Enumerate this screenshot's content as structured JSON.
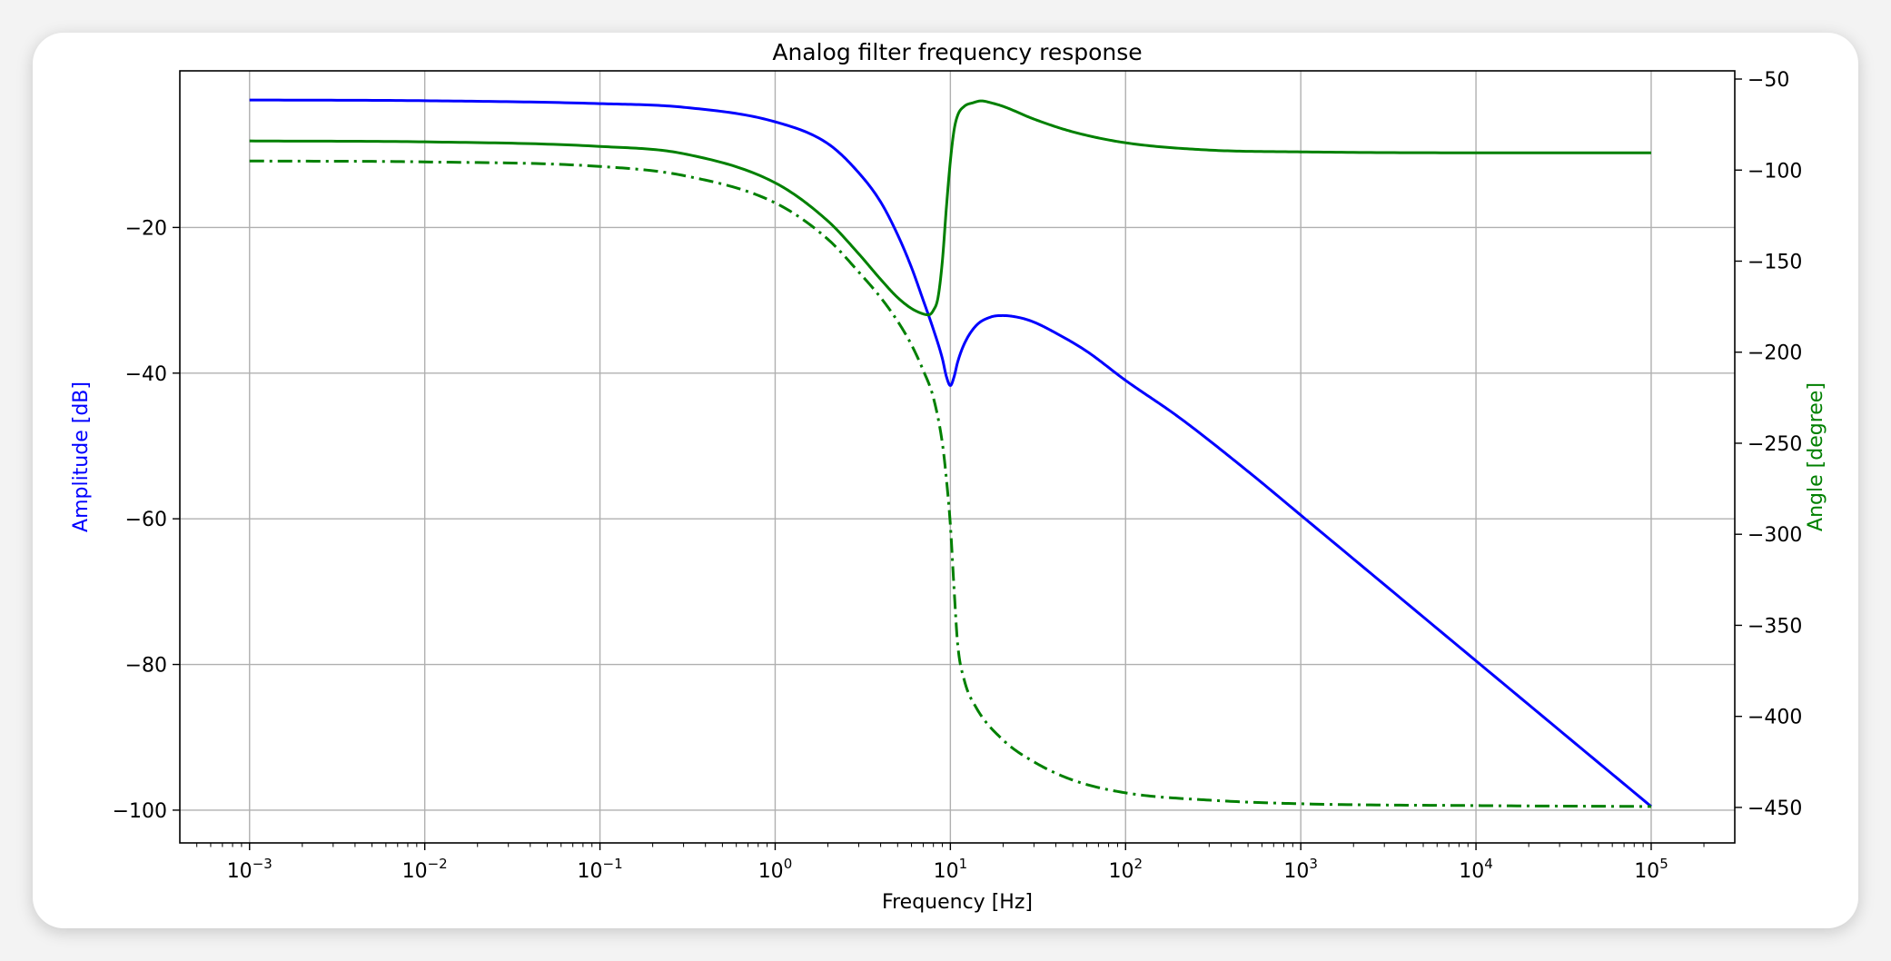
{
  "chart_data": {
    "type": "line",
    "title": "Analog filter frequency response",
    "xlabel": "Frequency [Hz]",
    "ylabel_left": "Amplitude [dB]",
    "ylabel_right": "Angle [degree]",
    "x_scale": "log",
    "xlim": [
      0.0004,
      300000
    ],
    "ylim_left": [
      -104.5,
      1.5
    ],
    "ylim_right": [
      -469.5,
      -45.5
    ],
    "x_ticks": [
      {
        "base": "10",
        "exp": "−3",
        "value": 0.001
      },
      {
        "base": "10",
        "exp": "−2",
        "value": 0.01
      },
      {
        "base": "10",
        "exp": "−1",
        "value": 0.1
      },
      {
        "base": "10",
        "exp": "0",
        "value": 1
      },
      {
        "base": "10",
        "exp": "1",
        "value": 10
      },
      {
        "base": "10",
        "exp": "2",
        "value": 100
      },
      {
        "base": "10",
        "exp": "3",
        "value": 1000
      },
      {
        "base": "10",
        "exp": "4",
        "value": 10000
      },
      {
        "base": "10",
        "exp": "5",
        "value": 100000
      }
    ],
    "y_ticks_left": [
      {
        "label": "−20",
        "value": -20
      },
      {
        "label": "−40",
        "value": -40
      },
      {
        "label": "−60",
        "value": -60
      },
      {
        "label": "−80",
        "value": -80
      },
      {
        "label": "−100",
        "value": -100
      }
    ],
    "y_ticks_right": [
      {
        "label": "−50",
        "value": -50
      },
      {
        "label": "−100",
        "value": -100
      },
      {
        "label": "−150",
        "value": -150
      },
      {
        "label": "−200",
        "value": -200
      },
      {
        "label": "−250",
        "value": -250
      },
      {
        "label": "−300",
        "value": -300
      },
      {
        "label": "−350",
        "value": -350
      },
      {
        "label": "−400",
        "value": -400
      },
      {
        "label": "−450",
        "value": -450
      }
    ],
    "grid": true,
    "series": [
      {
        "axis": "left",
        "color": "#0000ff",
        "style": "solid",
        "points": [
          [
            0.001,
            -2.5
          ],
          [
            0.01,
            -2.6
          ],
          [
            0.1,
            -3.0
          ],
          [
            0.3,
            -3.5
          ],
          [
            1,
            -5.5
          ],
          [
            2,
            -8.5
          ],
          [
            3,
            -12.5
          ],
          [
            4,
            -16.5
          ],
          [
            5,
            -21
          ],
          [
            6,
            -25.5
          ],
          [
            7,
            -30
          ],
          [
            8,
            -34
          ],
          [
            9,
            -38
          ],
          [
            9.5,
            -40.5
          ],
          [
            10,
            -41.7
          ],
          [
            10.5,
            -40.5
          ],
          [
            11,
            -38.5
          ],
          [
            12,
            -36
          ],
          [
            14,
            -33.5
          ],
          [
            17,
            -32.3
          ],
          [
            20,
            -32.1
          ],
          [
            25,
            -32.4
          ],
          [
            30,
            -33
          ],
          [
            40,
            -34.5
          ],
          [
            60,
            -37
          ],
          [
            100,
            -41
          ],
          [
            200,
            -46
          ],
          [
            500,
            -53.5
          ],
          [
            1000,
            -59.5
          ],
          [
            10000,
            -79.5
          ],
          [
            100000,
            -99.5
          ]
        ]
      },
      {
        "axis": "right",
        "color": "#008000",
        "style": "solid",
        "points": [
          [
            0.001,
            -84
          ],
          [
            0.01,
            -84.5
          ],
          [
            0.1,
            -87
          ],
          [
            0.3,
            -91
          ],
          [
            1,
            -107
          ],
          [
            2,
            -128
          ],
          [
            3,
            -146
          ],
          [
            4,
            -160
          ],
          [
            5,
            -170
          ],
          [
            6,
            -176
          ],
          [
            7,
            -179
          ],
          [
            7.5,
            -179.5
          ],
          [
            8,
            -177
          ],
          [
            8.5,
            -170
          ],
          [
            9,
            -150
          ],
          [
            9.5,
            -120
          ],
          [
            10,
            -95
          ],
          [
            10.5,
            -78
          ],
          [
            11,
            -70
          ],
          [
            12,
            -65
          ],
          [
            13.5,
            -63
          ],
          [
            15,
            -62
          ],
          [
            17,
            -63
          ],
          [
            20,
            -65
          ],
          [
            30,
            -72
          ],
          [
            50,
            -79
          ],
          [
            100,
            -85
          ],
          [
            300,
            -89
          ],
          [
            1000,
            -90
          ],
          [
            10000,
            -90.5
          ],
          [
            100000,
            -90.5
          ]
        ]
      },
      {
        "axis": "right",
        "color": "#008000",
        "style": "dashdot",
        "points": [
          [
            0.001,
            -95
          ],
          [
            0.01,
            -95.5
          ],
          [
            0.1,
            -98
          ],
          [
            0.3,
            -103
          ],
          [
            1,
            -118
          ],
          [
            2,
            -138
          ],
          [
            3,
            -156
          ],
          [
            4,
            -170
          ],
          [
            5,
            -183
          ],
          [
            6,
            -196
          ],
          [
            7,
            -210
          ],
          [
            8,
            -225
          ],
          [
            9,
            -250
          ],
          [
            9.5,
            -270
          ],
          [
            10,
            -295
          ],
          [
            10.5,
            -330
          ],
          [
            11,
            -360
          ],
          [
            12,
            -380
          ],
          [
            14,
            -395
          ],
          [
            20,
            -413
          ],
          [
            30,
            -425
          ],
          [
            50,
            -435
          ],
          [
            100,
            -442
          ],
          [
            300,
            -446
          ],
          [
            1000,
            -448
          ],
          [
            10000,
            -449
          ],
          [
            100000,
            -449.5
          ]
        ]
      }
    ]
  }
}
